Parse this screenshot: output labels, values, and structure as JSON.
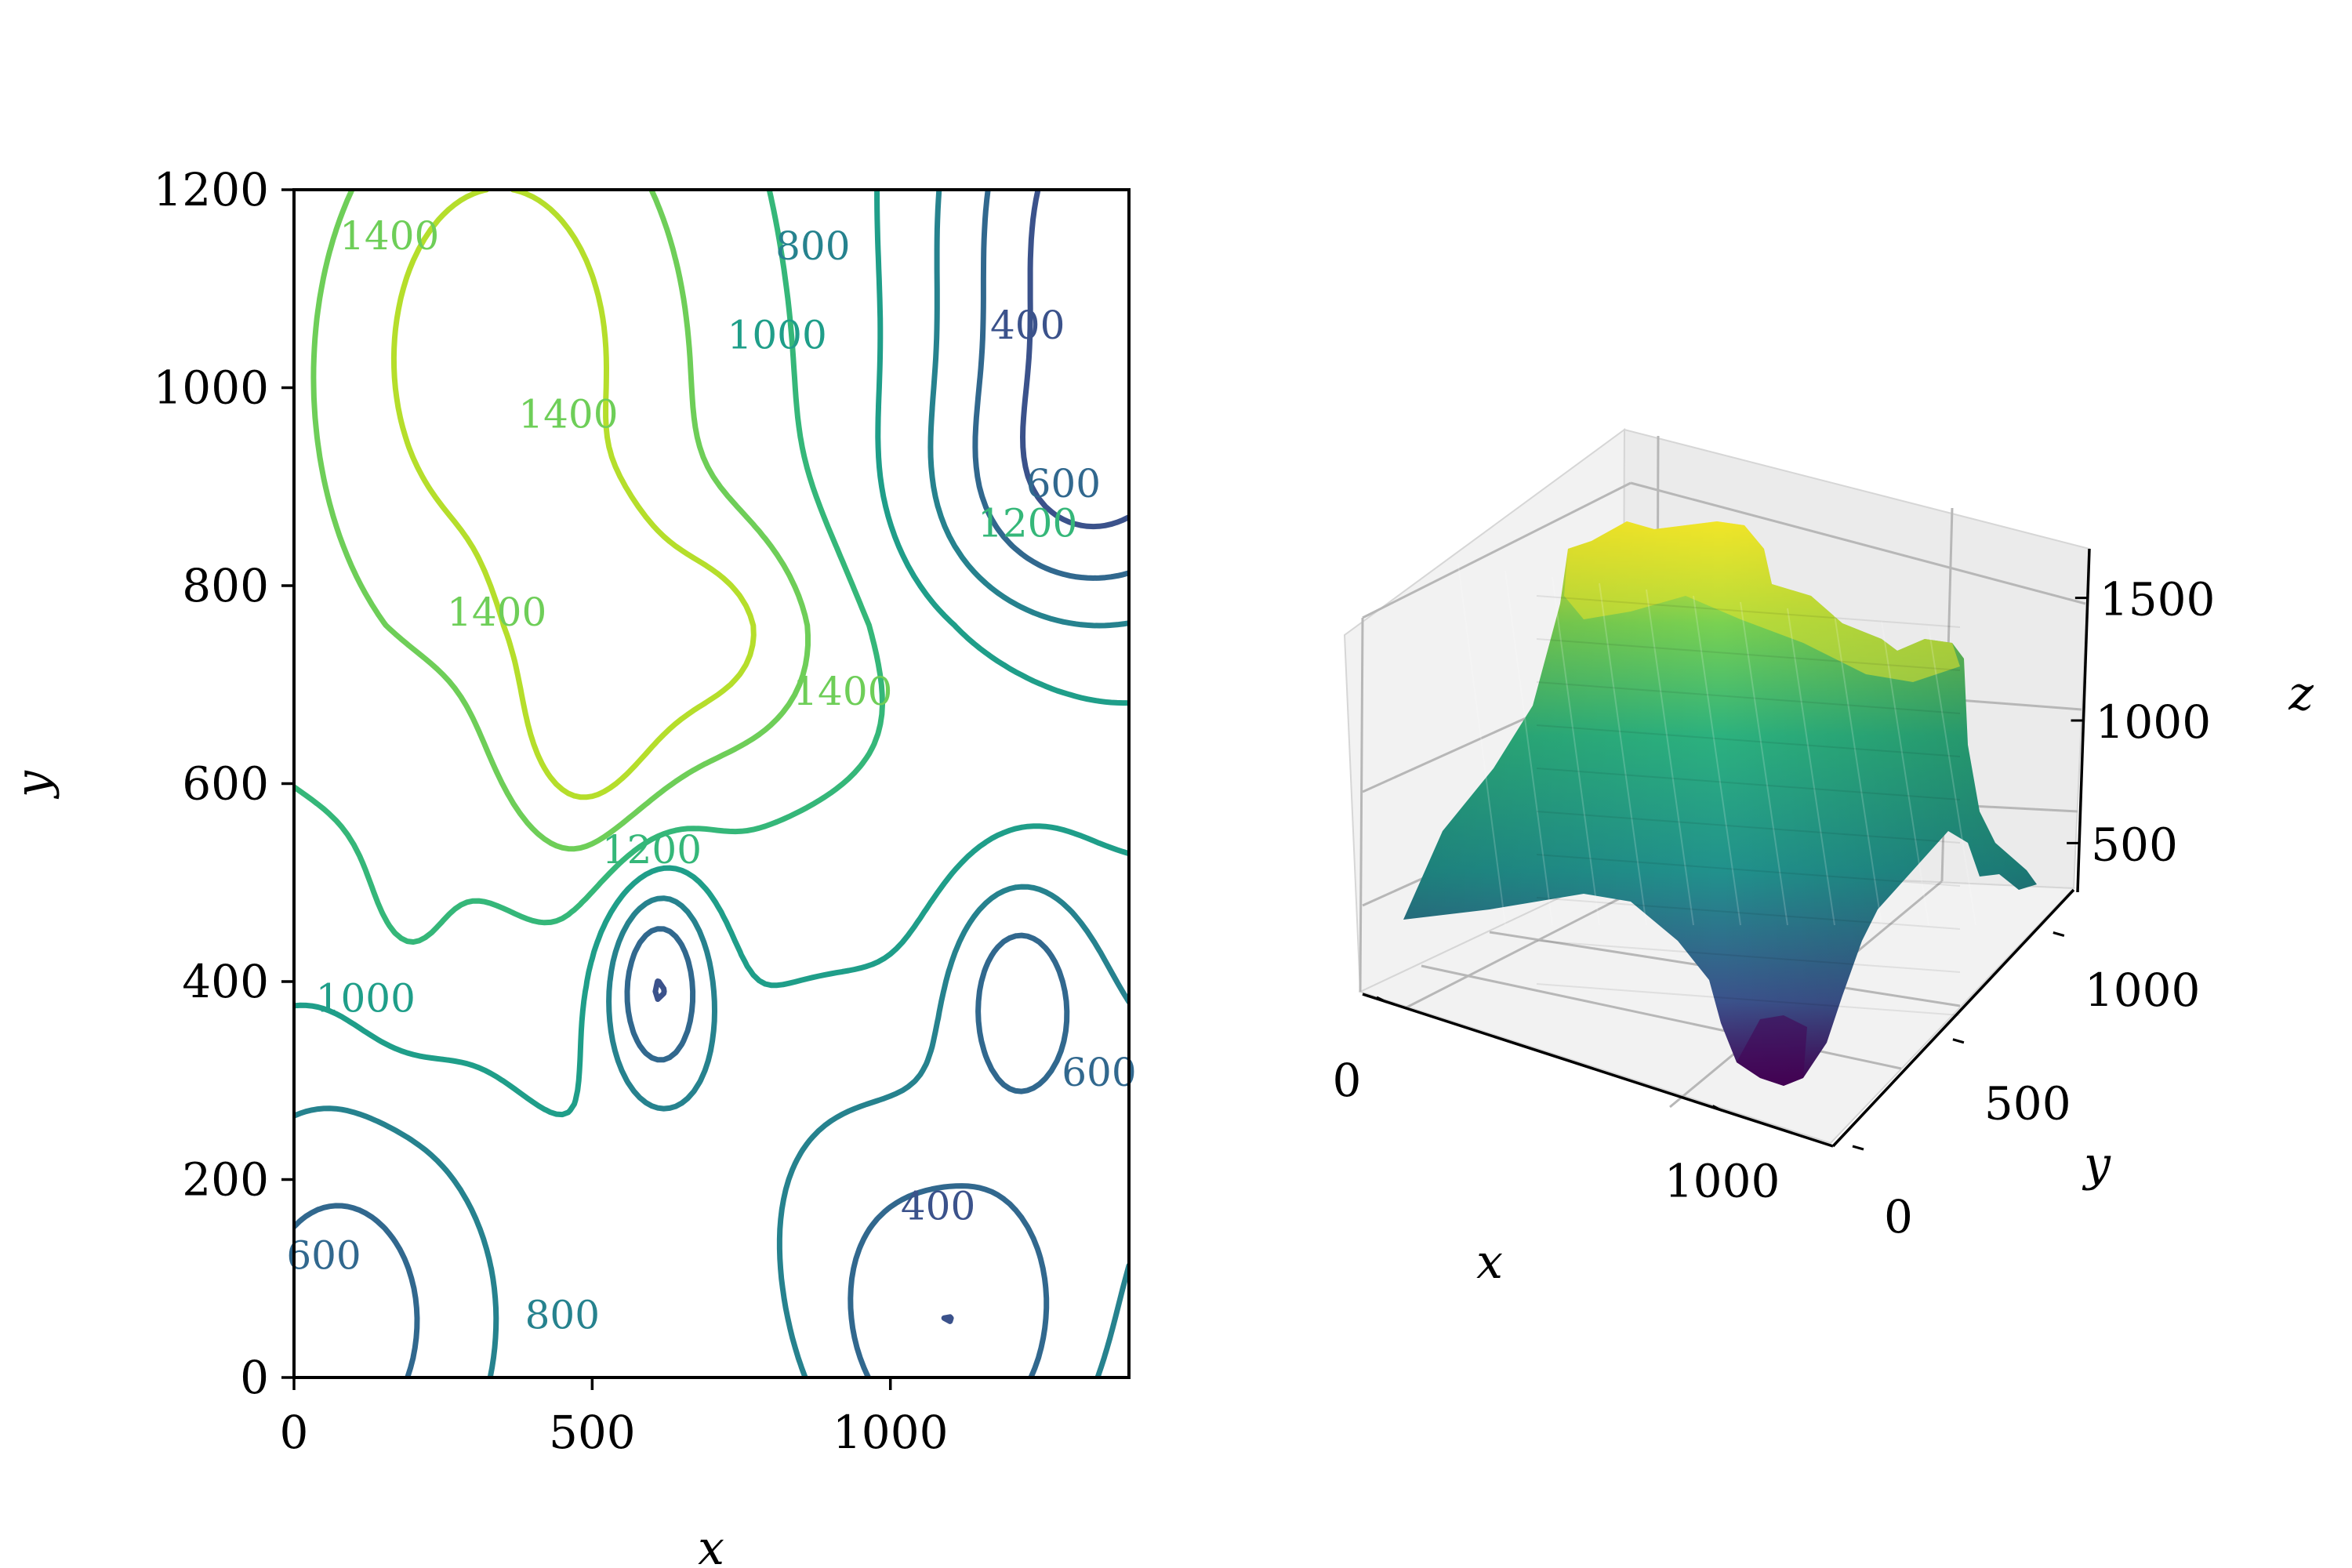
{
  "chart_data": [
    {
      "type": "contour",
      "xlabel": "x",
      "ylabel": "y",
      "xlim": [
        0,
        1400
      ],
      "ylim": [
        0,
        1200
      ],
      "x_ticks": [
        "0",
        "500",
        "1000"
      ],
      "y_ticks": [
        "0",
        "200",
        "400",
        "600",
        "800",
        "1000",
        "1200"
      ],
      "levels": [
        400,
        600,
        800,
        1000,
        1200,
        1400,
        1600
      ],
      "contour_labels": [
        {
          "text": "1400",
          "x": 160,
          "y": 1150,
          "level": 1400
        },
        {
          "text": "800",
          "x": 870,
          "y": 1140,
          "level": 800
        },
        {
          "text": "1000",
          "x": 810,
          "y": 1050,
          "level": 1000
        },
        {
          "text": "400",
          "x": 1230,
          "y": 1060,
          "level": 400
        },
        {
          "text": "1400",
          "x": 460,
          "y": 970,
          "level": 1400
        },
        {
          "text": "600",
          "x": 1290,
          "y": 900,
          "level": 600
        },
        {
          "text": "1200",
          "x": 1230,
          "y": 860,
          "level": 1200
        },
        {
          "text": "1400",
          "x": 340,
          "y": 770,
          "level": 1400
        },
        {
          "text": "1400",
          "x": 920,
          "y": 690,
          "level": 1400
        },
        {
          "text": "1200",
          "x": 600,
          "y": 530,
          "level": 1200
        },
        {
          "text": "1000",
          "x": 120,
          "y": 380,
          "level": 1000
        },
        {
          "text": "600",
          "x": 1350,
          "y": 305,
          "level": 600
        },
        {
          "text": "400",
          "x": 1080,
          "y": 170,
          "level": 400
        },
        {
          "text": "600",
          "x": 50,
          "y": 120,
          "level": 600
        },
        {
          "text": "800",
          "x": 450,
          "y": 60,
          "level": 800
        }
      ]
    },
    {
      "type": "surface3d",
      "xlabel": "x",
      "ylabel": "y",
      "zlabel": "z",
      "x_ticks": [
        "0",
        "1000"
      ],
      "y_ticks": [
        "0",
        "500",
        "1000"
      ],
      "z_ticks": [
        "500",
        "1000",
        "1500"
      ],
      "xlim": [
        0,
        1400
      ],
      "ylim": [
        0,
        1200
      ],
      "zlim": [
        300,
        1700
      ],
      "colormap": "viridis"
    }
  ],
  "colors": {
    "400": "#3b528b",
    "600": "#31688e",
    "800": "#26828e",
    "1000": "#1f9e89",
    "1200": "#35b779",
    "1400": "#6ece58",
    "1600": "#b5de2b",
    "low": "#440154"
  }
}
